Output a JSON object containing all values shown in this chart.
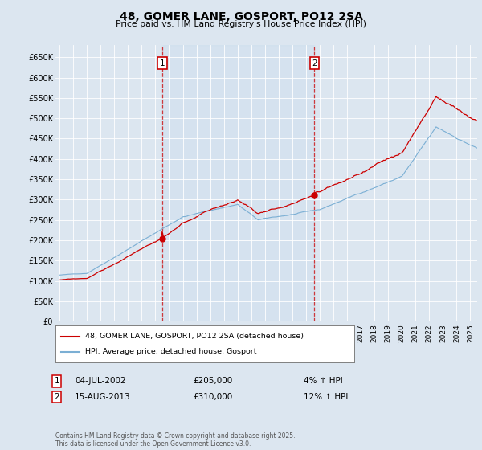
{
  "title": "48, GOMER LANE, GOSPORT, PO12 2SA",
  "subtitle": "Price paid vs. HM Land Registry's House Price Index (HPI)",
  "ylim": [
    0,
    680000
  ],
  "xlim_start": 1994.7,
  "xlim_end": 2025.5,
  "background_color": "#dce6f0",
  "grid_color": "#ffffff",
  "hpi_line_color": "#7bafd4",
  "price_line_color": "#cc0000",
  "vline_color": "#cc0000",
  "marker1_year": 2002.5,
  "marker2_year": 2013.62,
  "legend_label_red": "48, GOMER LANE, GOSPORT, PO12 2SA (detached house)",
  "legend_label_blue": "HPI: Average price, detached house, Gosport",
  "annotation1_date": "04-JUL-2002",
  "annotation1_price": "£205,000",
  "annotation1_hpi": "4% ↑ HPI",
  "annotation2_date": "15-AUG-2013",
  "annotation2_price": "£310,000",
  "annotation2_hpi": "12% ↑ HPI",
  "footnote": "Contains HM Land Registry data © Crown copyright and database right 2025.\nThis data is licensed under the Open Government Licence v3.0.",
  "purchase1_year": 2002.5,
  "purchase1_price": 205000,
  "purchase2_year": 2013.62,
  "purchase2_price": 310000
}
